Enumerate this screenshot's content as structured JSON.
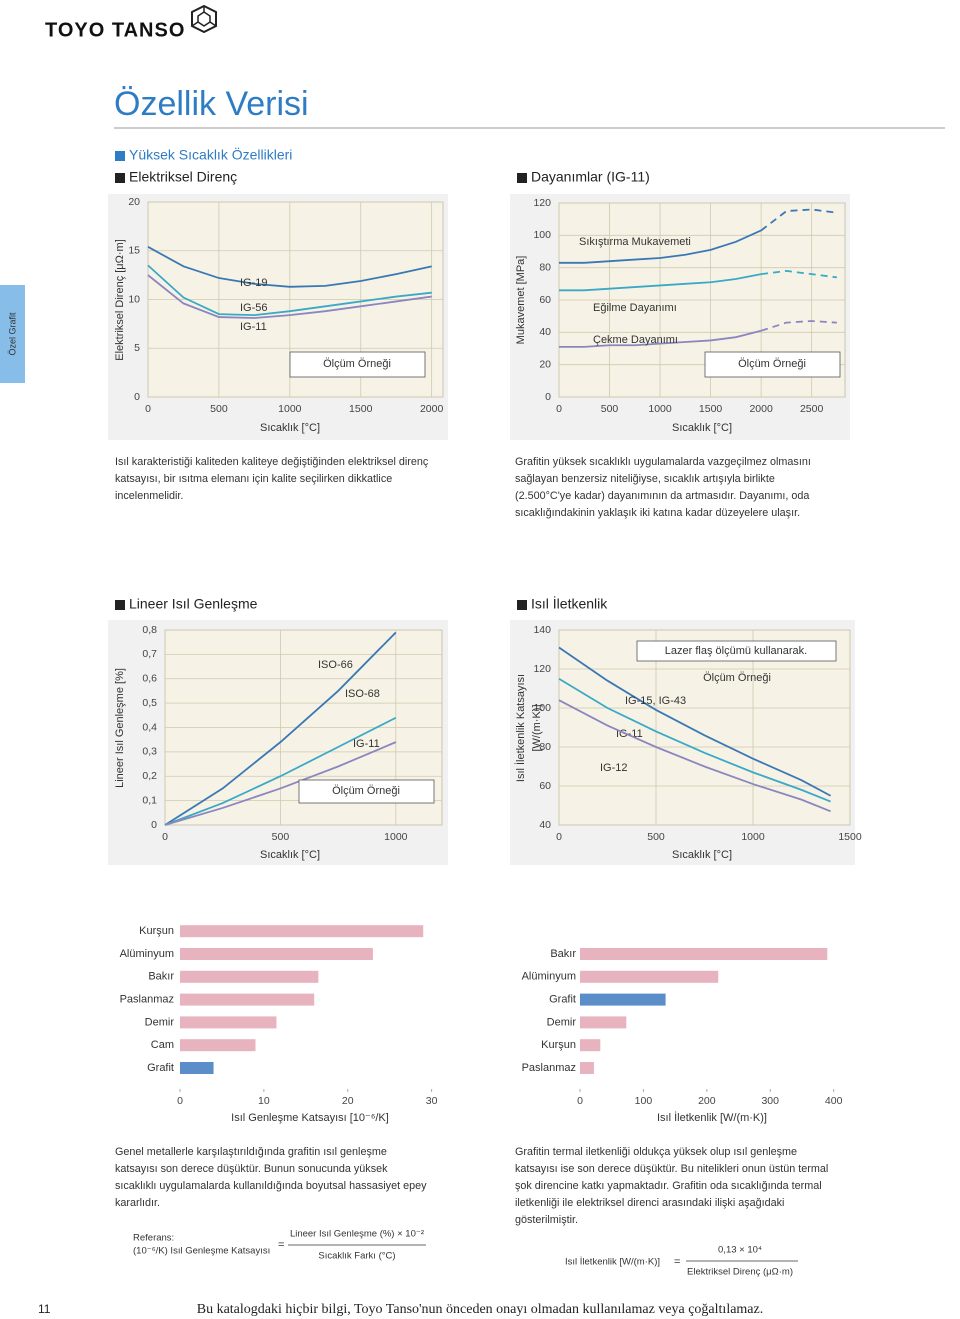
{
  "header": {
    "brand": "TOYO TANSO",
    "title": "Özellik Verisi",
    "section": "Yüksek Sıcaklık Özellikleri",
    "side_tab": "Özel Grafit"
  },
  "chart_data": [
    {
      "type": "line",
      "title": "Elektriksel Direnç",
      "x_label": "Sıcaklık [°C]",
      "y_label": [
        "Elektriksel Direnç [μΩ·m]"
      ],
      "x": [
        0,
        250,
        500,
        750,
        1000,
        1250,
        1500,
        1750,
        2000
      ],
      "series": [
        {
          "name": "IG-19",
          "color": "#3a78b5",
          "values": [
            15.4,
            13.4,
            12.2,
            11.6,
            11.3,
            11.4,
            11.9,
            12.6,
            13.4
          ]
        },
        {
          "name": "IG-56",
          "color": "#3aa9c6",
          "values": [
            13.5,
            10.2,
            8.5,
            8.4,
            8.8,
            9.3,
            9.8,
            10.3,
            10.7
          ]
        },
        {
          "name": "IG-11",
          "color": "#8c86c0",
          "values": [
            12.5,
            9.6,
            8.2,
            8.1,
            8.4,
            8.8,
            9.3,
            9.8,
            10.3
          ]
        }
      ],
      "xlim": [
        0,
        2080
      ],
      "ylim": [
        0,
        20
      ],
      "xticks": [
        0,
        500,
        1000,
        1500,
        2000
      ],
      "yticks": [
        0,
        5,
        10,
        15,
        20
      ],
      "grid": true,
      "annotations": [
        "Ölçüm Örneği"
      ]
    },
    {
      "type": "line",
      "title": "Dayanımlar (IG-11)",
      "x_label": "Sıcaklık [°C]",
      "y_label": [
        "Mukavemet [MPa]"
      ],
      "x": [
        0,
        250,
        500,
        750,
        1000,
        1250,
        1500,
        1750,
        2000,
        2250,
        2500,
        2750
      ],
      "series": [
        {
          "name": "Sıkıştırma Mukavemeti",
          "color": "#3a78b5",
          "values": [
            83,
            83,
            84,
            85,
            86,
            88,
            91,
            96,
            103,
            115,
            116,
            114
          ]
        },
        {
          "name": "Eğilme Dayanımı",
          "color": "#3aa9c6",
          "values": [
            66,
            66,
            67,
            68,
            69,
            70,
            71,
            73,
            76,
            78,
            76,
            74
          ]
        },
        {
          "name": "Çekme Dayanımı",
          "color": "#8c86c0",
          "values": [
            31,
            31,
            32,
            32,
            33,
            34,
            35,
            37,
            41,
            46,
            47,
            46
          ]
        }
      ],
      "dashed_after_x": 2000,
      "xlim": [
        0,
        2830
      ],
      "ylim": [
        0,
        120
      ],
      "xticks": [
        0,
        500,
        1000,
        1500,
        2000,
        2500
      ],
      "yticks": [
        0,
        20,
        40,
        60,
        80,
        100,
        120
      ],
      "grid": true,
      "annotations": [
        "Ölçüm Örneği"
      ]
    },
    {
      "type": "line",
      "title": "Lineer Isıl Genleşme",
      "x_label": "Sıcaklık [°C]",
      "y_label": [
        "Lineer Isıl Genleşme [%]"
      ],
      "x": [
        0,
        250,
        500,
        750,
        1000
      ],
      "series": [
        {
          "name": "ISO-66",
          "color": "#3a78b5",
          "values": [
            0,
            0.15,
            0.34,
            0.55,
            0.79
          ]
        },
        {
          "name": "ISO-68",
          "color": "#3aa9c6",
          "values": [
            0,
            0.09,
            0.2,
            0.32,
            0.44
          ]
        },
        {
          "name": "IG-11",
          "color": "#8c86c0",
          "values": [
            0,
            0.07,
            0.15,
            0.24,
            0.34
          ]
        }
      ],
      "xlim": [
        0,
        1200
      ],
      "ylim": [
        0,
        0.8
      ],
      "xticks": [
        0,
        500,
        1000
      ],
      "yticks": [
        0,
        {
          "value": 0.1,
          "label": "0,1"
        },
        {
          "value": 0.2,
          "label": "0,2"
        },
        {
          "value": 0.3,
          "label": "0,3"
        },
        {
          "value": 0.4,
          "label": "0,4"
        },
        {
          "value": 0.5,
          "label": "0,5"
        },
        {
          "value": 0.6,
          "label": "0,6"
        },
        {
          "value": 0.7,
          "label": "0,7"
        },
        {
          "value": 0.8,
          "label": "0,8"
        }
      ],
      "grid": true,
      "annotations": [
        "Ölçüm Örneği"
      ]
    },
    {
      "type": "line",
      "title": "Isıl İletkenlik",
      "x_label": "Sıcaklık [°C]",
      "y_label": [
        "Isıl İletkenlik Katsayısı",
        "[W/(m·K)]"
      ],
      "x": [
        0,
        250,
        500,
        750,
        1000,
        1250,
        1400
      ],
      "series": [
        {
          "name": "IG-15, IG-43",
          "color": "#3a78b5",
          "values": [
            131,
            114,
            99,
            86,
            74,
            63,
            55
          ]
        },
        {
          "name": "IG-11",
          "color": "#3aa9c6",
          "values": [
            115,
            100,
            88,
            77,
            67,
            58,
            52
          ]
        },
        {
          "name": "IG-12",
          "color": "#8c86c0",
          "values": [
            104,
            91,
            80,
            70,
            61,
            53,
            47
          ]
        }
      ],
      "xlim": [
        0,
        1500
      ],
      "ylim": [
        40,
        140
      ],
      "xticks": [
        0,
        500,
        1000,
        1500
      ],
      "yticks": [
        40,
        60,
        80,
        100,
        120,
        140
      ],
      "grid": true,
      "annotations": [
        "Lazer flaş ölçümü kullanarak.",
        "Ölçüm Örneği"
      ]
    },
    {
      "type": "barh",
      "x_label": "Isıl Genleşme Katsayısı [10⁻⁶/K]",
      "categories": [
        "Kurşun",
        "Alüminyum",
        "Bakır",
        "Paslanmaz",
        "Demir",
        "Cam",
        "Grafit"
      ],
      "values": [
        29,
        23,
        16.5,
        16,
        11.5,
        9,
        4
      ],
      "colors": [
        "#e6b3bf",
        "#e6b3bf",
        "#e6b3bf",
        "#e6b3bf",
        "#e6b3bf",
        "#e6b3bf",
        "#5b8ec8"
      ],
      "xlim": [
        0,
        31
      ],
      "xticks": [
        0,
        10,
        20,
        30
      ]
    },
    {
      "type": "barh",
      "x_label": "Isıl İletkenlik [W/(m·K)]",
      "categories": [
        "Bakır",
        "Alüminyum",
        "Grafit",
        "Demir",
        "Kurşun",
        "Paslanmaz"
      ],
      "values": [
        390,
        218,
        135,
        73,
        32,
        22
      ],
      "colors": [
        "#e6b3bf",
        "#e6b3bf",
        "#5b8ec8",
        "#e6b3bf",
        "#e6b3bf",
        "#e6b3bf"
      ],
      "xlim": [
        0,
        410
      ],
      "xticks": [
        0,
        100,
        200,
        300,
        400
      ]
    }
  ],
  "paragraphs": [
    [
      "Isıl karakteristiği kaliteden kaliteye değiştiğinden elektriksel direnç",
      "katsayısı, bir ısıtma elemanı için kalite seçilirken dikkatlice",
      "incelenmelidir."
    ],
    [
      "Grafitin yüksek sıcaklıklı uygulamalarda vazgeçilmez olmasını",
      "sağlayan benzersiz niteliğiyse, sıcaklık artışıyla birlikte",
      "(2.500°C'ye kadar) dayanımının da artmasıdır. Dayanımı, oda",
      "sıcaklığındakinin yaklaşık iki katına kadar düzeyelere ulaşır."
    ],
    [
      "Genel metallerle karşılaştırıldığında grafitin ısıl genleşme",
      "katsayısı son derece düşüktür. Bunun sonucunda yüksek",
      "sıcaklıklı uygulamalarda kullanıldığında boyutsal hassasiyet epey",
      "kararlıdır."
    ],
    [
      "Grafitin termal iletkenliği oldukça yüksek olup ısıl genleşme",
      "katsayısı ise son derece düşüktür. Bu nitelikleri onun üstün termal",
      "şok direncine katkı yapmaktadır. Grafitin oda sıcaklığında termal",
      "iletkenliği ile elektriksel direnci arasındaki ilişki aşağıdaki",
      "gösterilmiştir."
    ]
  ],
  "formulas": [
    {
      "label": [
        "Referans:",
        "(10⁻⁶/K) Isıl Genleşme Katsayısı"
      ],
      "equals": "=",
      "numerator": "Lineer Isıl Genleşme (%) × 10⁻²",
      "denominator": "Sıcaklık Farkı (°C)"
    },
    {
      "label": [
        "Isıl İletkenlik [W/(m·K)]"
      ],
      "equals": "=",
      "numerator": "0,13 × 10⁴",
      "denominator": "Elektriksel Direnç (μΩ·m)"
    }
  ],
  "footer": {
    "page": "11",
    "notice": "Bu katalogdaki hiçbir bilgi, Toyo Tanso'nun önceden onayı olmadan kullanılamaz veya çoğaltılamaz."
  }
}
